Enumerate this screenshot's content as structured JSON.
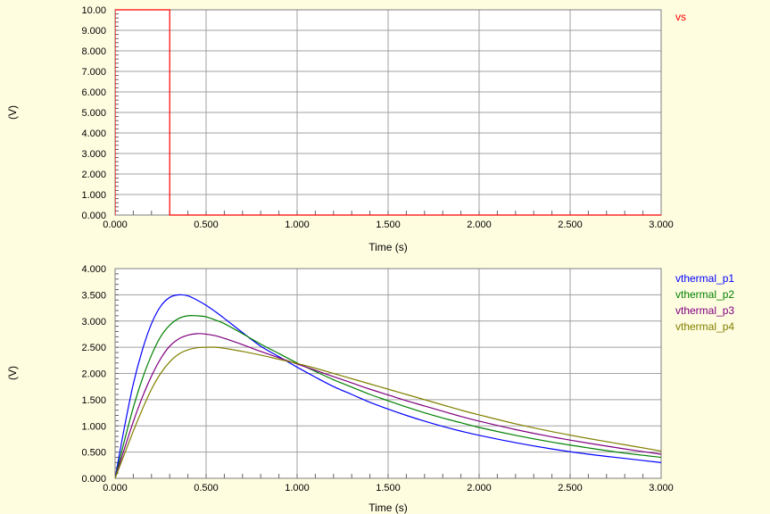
{
  "chart_data": [
    {
      "type": "line",
      "xlabel": "Time (s)",
      "ylabel": "(V)",
      "xlim": [
        0,
        3
      ],
      "ylim": [
        0,
        10
      ],
      "x_ticks": [
        "0.000",
        "0.500",
        "1.000",
        "1.500",
        "2.000",
        "2.500",
        "3.000"
      ],
      "y_ticks": [
        "0.000",
        "1.000",
        "2.000",
        "3.000",
        "4.000",
        "5.000",
        "6.000",
        "7.000",
        "8.000",
        "9.000",
        "10.00"
      ],
      "grid": true,
      "legend_position": "right",
      "series": [
        {
          "name": "vs",
          "color": "#ff0000",
          "x": [
            0,
            0,
            0.3,
            0.3,
            3.0
          ],
          "y": [
            0,
            10,
            10,
            0,
            0
          ]
        }
      ]
    },
    {
      "type": "line",
      "xlabel": "Time (s)",
      "ylabel": "(V)",
      "xlim": [
        0,
        3
      ],
      "ylim": [
        0,
        4
      ],
      "x_ticks": [
        "0.000",
        "0.500",
        "1.000",
        "1.500",
        "2.000",
        "2.500",
        "3.000"
      ],
      "y_ticks": [
        "0.000",
        "0.500",
        "1.000",
        "1.500",
        "2.000",
        "2.500",
        "3.000",
        "3.500",
        "4.000"
      ],
      "grid": true,
      "legend_position": "right",
      "x": [
        0,
        0.05,
        0.1,
        0.15,
        0.2,
        0.25,
        0.3,
        0.35,
        0.4,
        0.45,
        0.5,
        0.55,
        0.6,
        0.7,
        0.8,
        0.9,
        1.0,
        1.1,
        1.2,
        1.3,
        1.4,
        1.5,
        1.6,
        1.7,
        1.8,
        1.9,
        2.0,
        2.2,
        2.4,
        2.6,
        2.8,
        3.0
      ],
      "series": [
        {
          "name": "vthermal_p1",
          "color": "#0000ff",
          "values": [
            0,
            0.95,
            1.8,
            2.45,
            2.95,
            3.28,
            3.45,
            3.5,
            3.48,
            3.4,
            3.3,
            3.18,
            3.05,
            2.78,
            2.52,
            2.32,
            2.12,
            1.93,
            1.75,
            1.6,
            1.45,
            1.32,
            1.2,
            1.09,
            0.99,
            0.9,
            0.82,
            0.68,
            0.56,
            0.46,
            0.38,
            0.3
          ]
        },
        {
          "name": "vthermal_p2",
          "color": "#008000",
          "values": [
            0,
            0.7,
            1.35,
            1.9,
            2.35,
            2.7,
            2.92,
            3.05,
            3.1,
            3.1,
            3.08,
            3.02,
            2.95,
            2.76,
            2.56,
            2.38,
            2.2,
            2.04,
            1.88,
            1.74,
            1.6,
            1.48,
            1.36,
            1.25,
            1.15,
            1.06,
            0.97,
            0.82,
            0.69,
            0.58,
            0.48,
            0.4
          ]
        },
        {
          "name": "vthermal_p3",
          "color": "#800080",
          "values": [
            0,
            0.55,
            1.08,
            1.55,
            1.95,
            2.28,
            2.52,
            2.66,
            2.73,
            2.76,
            2.75,
            2.72,
            2.67,
            2.55,
            2.42,
            2.3,
            2.18,
            2.06,
            1.94,
            1.82,
            1.7,
            1.59,
            1.48,
            1.38,
            1.28,
            1.18,
            1.09,
            0.93,
            0.79,
            0.67,
            0.56,
            0.46
          ]
        },
        {
          "name": "vthermal_p4",
          "color": "#808000",
          "values": [
            0,
            0.45,
            0.9,
            1.32,
            1.7,
            2.0,
            2.22,
            2.37,
            2.45,
            2.49,
            2.5,
            2.5,
            2.48,
            2.42,
            2.35,
            2.27,
            2.19,
            2.1,
            2.0,
            1.9,
            1.8,
            1.7,
            1.6,
            1.5,
            1.4,
            1.3,
            1.21,
            1.04,
            0.89,
            0.76,
            0.64,
            0.52
          ]
        }
      ]
    }
  ]
}
